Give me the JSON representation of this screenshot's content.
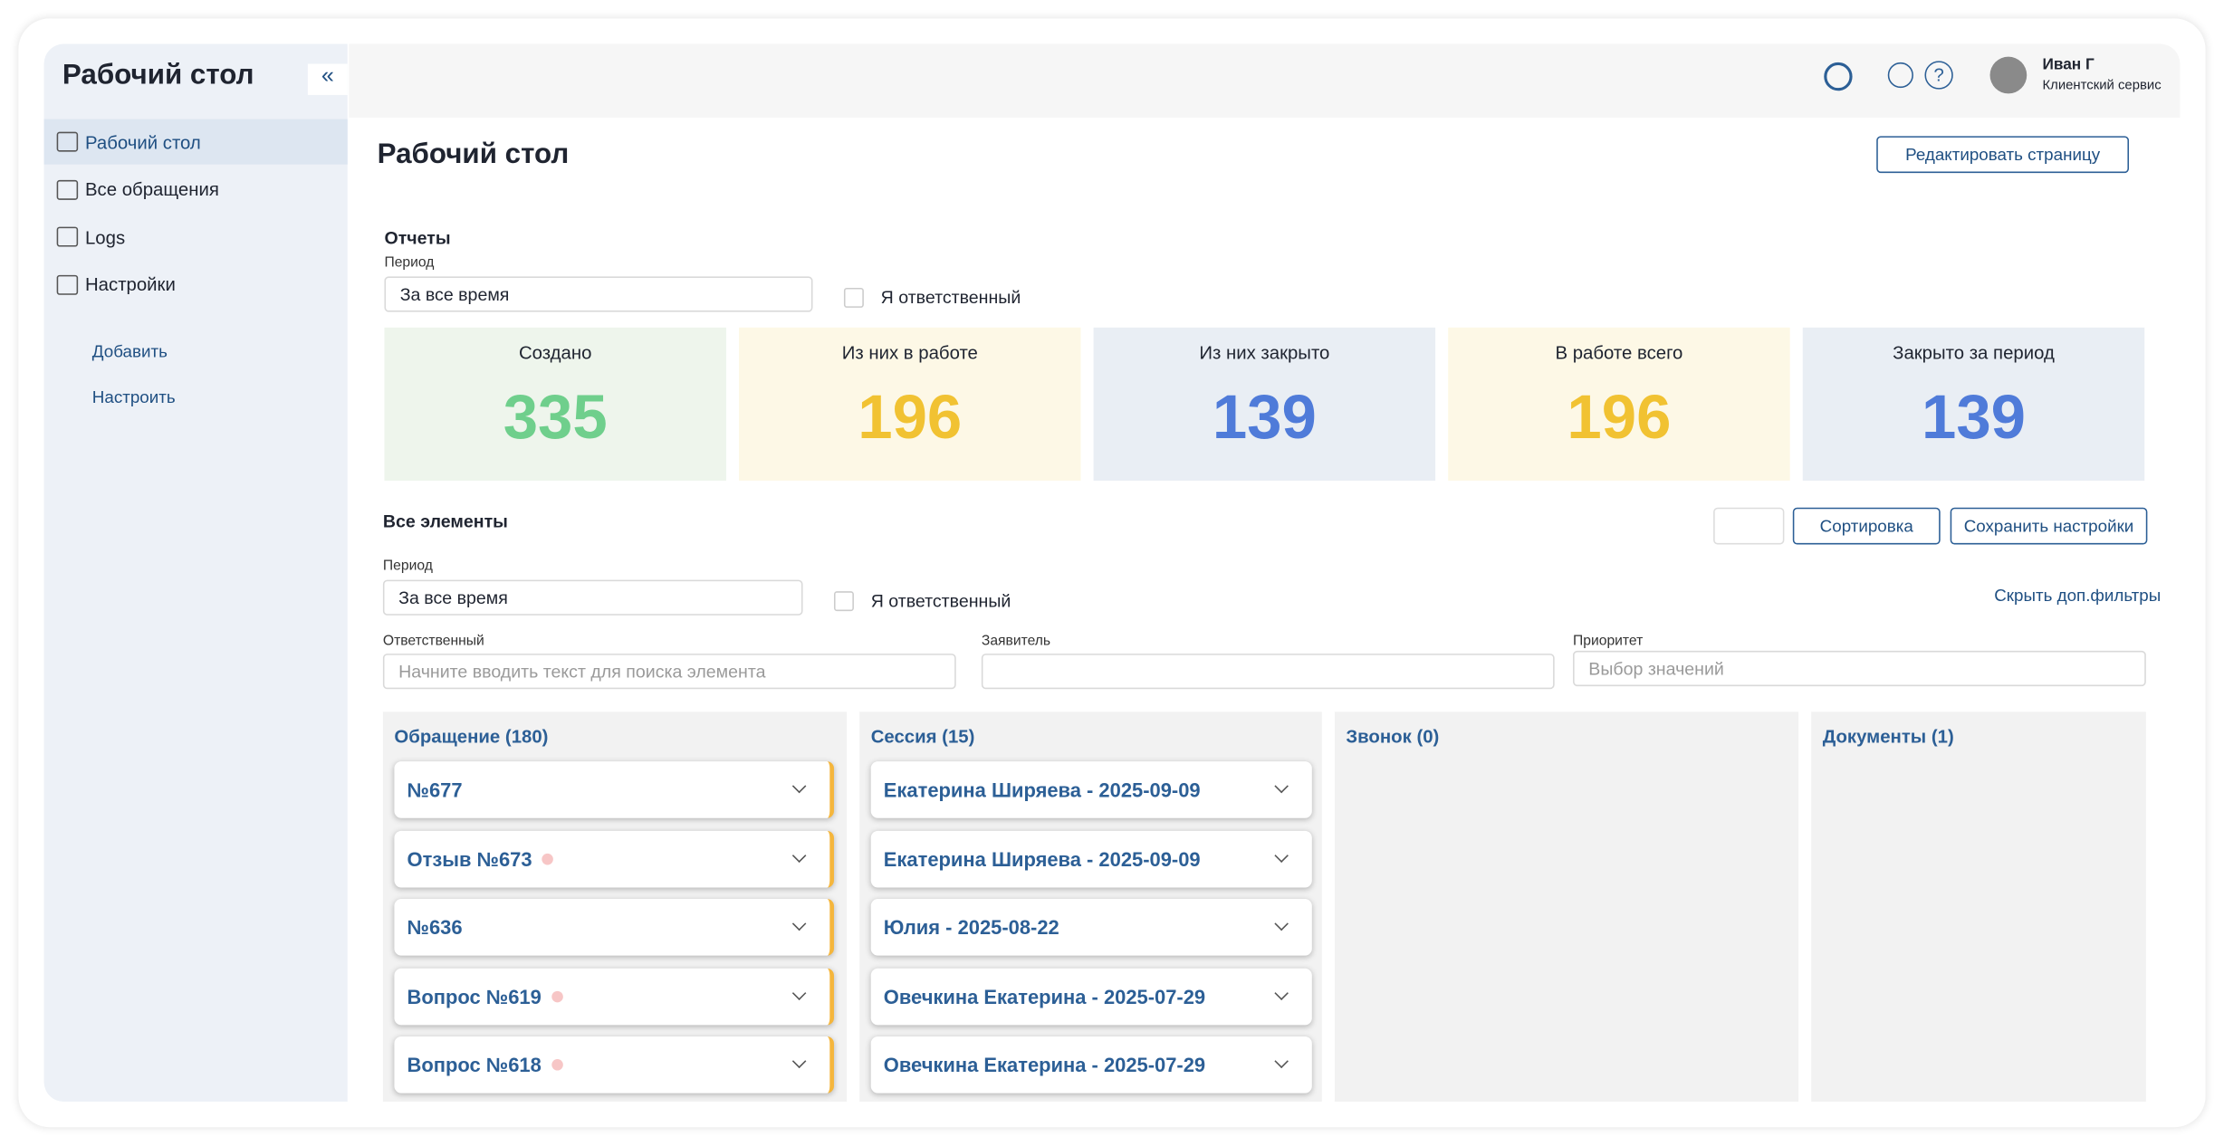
{
  "sidebar": {
    "title": "Рабочий стол",
    "nav": [
      "Рабочий стол",
      "Все обращения",
      "Logs",
      "Настройки"
    ],
    "actions": [
      "Добавить",
      "Настроить"
    ]
  },
  "header": {
    "user_name": "Иван Г",
    "user_role": "Клиентский сервис"
  },
  "page": {
    "title": "Рабочий стол",
    "edit_button": "Редактировать страницу"
  },
  "reports": {
    "title": "Отчеты",
    "period_label": "Период",
    "period_value": "За все время",
    "responsible": "Я ответственный",
    "stats": [
      {
        "label": "Создано",
        "value": 335
      },
      {
        "label": "Из них в работе",
        "value": 196
      },
      {
        "label": "Из них закрыто",
        "value": 139
      },
      {
        "label": "В работе всего",
        "value": 196
      },
      {
        "label": "Закрыто за период",
        "value": 139
      }
    ]
  },
  "all_elements": {
    "title": "Все элементы",
    "sort_button": "Сортировка",
    "save_button": "Сохранить настройки",
    "period_label": "Период",
    "period_value": "За все время",
    "responsible": "Я ответственный",
    "hide_filters": "Скрыть доп.фильтры",
    "filters": [
      {
        "label": "Ответственный",
        "placeholder": "Начните вводить текст для поиска элемента"
      },
      {
        "label": "Заявитель"
      },
      {
        "label": "Приоритет",
        "placeholder": "Выбор значений"
      }
    ]
  },
  "columns": [
    {
      "title": "Обращение (180)",
      "cards": [
        {
          "title": "№677",
          "flag": false
        },
        {
          "title": "Отзыв №673",
          "flag": true
        },
        {
          "title": "№636",
          "flag": false
        },
        {
          "title": "Вопрос №619",
          "flag": true
        },
        {
          "title": "Вопрос №618",
          "flag": true
        }
      ]
    },
    {
      "title": "Сессия (15)",
      "cards": [
        {
          "title": "Екатерина Ширяева - 2025-09-09",
          "flag": false
        },
        {
          "title": "Екатерина Ширяева - 2025-09-09",
          "flag": false
        },
        {
          "title": "Юлия - 2025-08-22",
          "flag": false
        },
        {
          "title": "Овечкина Екатерина - 2025-07-29",
          "flag": false
        },
        {
          "title": "Овечкина Екатерина - 2025-07-29",
          "flag": false
        }
      ]
    },
    {
      "title": "Звонок (0)",
      "cards": []
    },
    {
      "title": "Документы (1)",
      "cards": []
    }
  ]
}
